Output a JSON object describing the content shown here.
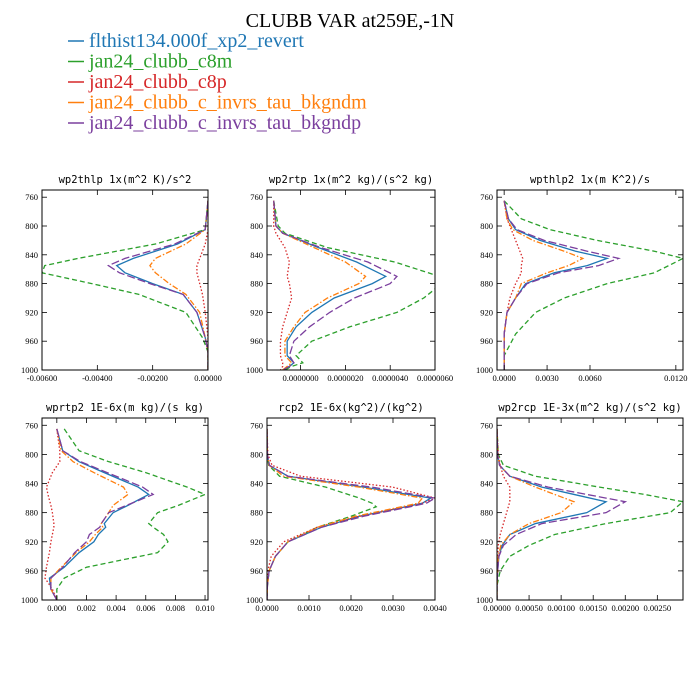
{
  "title": "CLUBB VAR at259E,-1N",
  "legend": [
    {
      "name": "flthist134.000f_xp2_revert",
      "color": "#1f77b4",
      "dash": "solid"
    },
    {
      "name": "jan24_clubb_c8m",
      "color": "#2ca02c",
      "dash": "dashed"
    },
    {
      "name": "jan24_clubb_c8p",
      "color": "#d62728",
      "dash": "dotted"
    },
    {
      "name": "jan24_clubb_c_invrs_tau_bkgndm",
      "color": "#ff7f0e",
      "dash": "dashdot"
    },
    {
      "name": "jan24_clubb_c_invrs_tau_bkgndp",
      "color": "#7b3f9e",
      "dash": "longdash"
    }
  ],
  "chart_data": [
    {
      "type": "line",
      "title": "wp2thlp  1x(m^2 K)/s^2",
      "xlim": [
        -0.006,
        0.0
      ],
      "ylim": [
        1000,
        750
      ],
      "xticks": [
        -0.006,
        -0.004,
        -0.002,
        0.0
      ],
      "xtick_labels": [
        "-0.00600",
        "-0.00400",
        "-0.00200",
        "0.00000"
      ],
      "yticks": [
        760,
        800,
        840,
        880,
        920,
        960,
        1000
      ],
      "ytick_labels": [
        "760",
        "800",
        "840",
        "880",
        "920",
        "960",
        "1000"
      ],
      "y": [
        765,
        805,
        825,
        845,
        855,
        865,
        880,
        895,
        920,
        955,
        975,
        1000
      ],
      "series": [
        {
          "values": [
            0,
            -0.0001,
            -0.0011,
            -0.0027,
            -0.0033,
            -0.003,
            -0.002,
            -0.0009,
            -0.0004,
            -0.0001,
            0,
            0
          ]
        },
        {
          "values": [
            0,
            -0.0001,
            -0.0019,
            -0.0047,
            -0.0059,
            -0.006,
            -0.0042,
            -0.0025,
            -0.0008,
            -0.0002,
            0,
            0
          ]
        },
        {
          "values": [
            0,
            0,
            -0.0001,
            -0.0003,
            -0.0004,
            -0.0004,
            -0.0003,
            -0.0002,
            -0.0001,
            0,
            0,
            0
          ]
        },
        {
          "values": [
            0,
            -0.0001,
            -0.0008,
            -0.0019,
            -0.0021,
            -0.0019,
            -0.0014,
            -0.0008,
            -0.0003,
            -0.0001,
            0,
            0
          ]
        },
        {
          "values": [
            0,
            -0.0001,
            -0.0012,
            -0.003,
            -0.0036,
            -0.0032,
            -0.0021,
            -0.0009,
            -0.0004,
            -0.0001,
            0,
            0
          ]
        }
      ]
    },
    {
      "type": "line",
      "title": "wp2rtp  1x(m^2 kg)/(s^2 kg)",
      "xlim": [
        -1.5e-06,
        6e-06
      ],
      "ylim": [
        1000,
        750
      ],
      "xticks": [
        0.0,
        2e-06,
        4e-06,
        6e-06
      ],
      "xtick_labels": [
        "0.0000000",
        "0.0000020",
        "0.0000040",
        "0.0000060"
      ],
      "yticks": [
        760,
        800,
        840,
        880,
        920,
        960,
        1000
      ],
      "ytick_labels": [
        "760",
        "800",
        "840",
        "880",
        "920",
        "960",
        "1000"
      ],
      "y": [
        765,
        800,
        810,
        830,
        850,
        870,
        880,
        900,
        920,
        940,
        960,
        980,
        990,
        995,
        1000
      ],
      "series": [
        {
          "values": [
            -1.2e-06,
            -1.1e-06,
            -8e-07,
            8e-07,
            2.5e-06,
            3.8e-06,
            3.2e-06,
            1.5e-06,
            5e-07,
            -2e-07,
            -6e-07,
            -6e-07,
            -3e-07,
            -5e-07,
            -8e-07
          ]
        },
        {
          "values": [
            -1.2e-06,
            -1e-06,
            -7e-07,
            1.2e-06,
            4.2e-06,
            6.2e-06,
            6.3e-06,
            5.5e-06,
            4.3e-06,
            2.2e-06,
            5e-07,
            -2e-07,
            1e-07,
            -4e-07,
            -7e-07
          ]
        },
        {
          "values": [
            -1.2e-06,
            -1.2e-06,
            -1.1e-06,
            -7e-07,
            -5e-07,
            -6e-07,
            -5e-07,
            -4e-07,
            -6e-07,
            -8e-07,
            -9e-07,
            -9e-07,
            -8e-07,
            -8e-07,
            -9e-07
          ]
        },
        {
          "values": [
            -1.2e-06,
            -1.1e-06,
            -8e-07,
            6e-07,
            2e-06,
            2.9e-06,
            2.6e-06,
            1.2e-06,
            2e-07,
            -3e-07,
            -7e-07,
            -7e-07,
            -4e-07,
            -6e-07,
            -8e-07
          ]
        },
        {
          "values": [
            -1.2e-06,
            -1.1e-06,
            -8e-07,
            9e-07,
            3e-06,
            4.3e-06,
            4e-06,
            2.4e-06,
            1.3e-06,
            4e-07,
            -3e-07,
            -5e-07,
            -3e-07,
            -5e-07,
            -8e-07
          ]
        }
      ]
    },
    {
      "type": "line",
      "title": "wpthlp2  1x(m K^2)/s",
      "xlim": [
        -0.0005,
        0.0125
      ],
      "ylim": [
        1000,
        750
      ],
      "xticks": [
        0.0,
        0.003,
        0.006,
        0.012
      ],
      "xtick_labels": [
        "0.0000",
        "0.0030",
        "0.0060",
        "0.0120"
      ],
      "yticks": [
        760,
        800,
        840,
        880,
        920,
        960,
        1000
      ],
      "ytick_labels": [
        "760",
        "800",
        "840",
        "880",
        "920",
        "960",
        "1000"
      ],
      "y": [
        765,
        790,
        805,
        820,
        835,
        845,
        855,
        865,
        880,
        900,
        920,
        950,
        980,
        1000
      ],
      "series": [
        {
          "values": [
            0,
            0.0003,
            0.0008,
            0.0025,
            0.005,
            0.0072,
            0.0058,
            0.0035,
            0.0015,
            0.0008,
            0.0002,
            0,
            0,
            0
          ]
        },
        {
          "values": [
            0,
            0.0012,
            0.0032,
            0.0065,
            0.0105,
            0.0125,
            0.0115,
            0.0105,
            0.0072,
            0.0042,
            0.0022,
            0.0008,
            0,
            0
          ]
        },
        {
          "values": [
            0,
            0.0002,
            0.0005,
            0.0008,
            0.0011,
            0.0013,
            0.0012,
            0.0012,
            0.0008,
            0.0004,
            0.0002,
            0,
            0,
            0
          ]
        },
        {
          "values": [
            0,
            0.0002,
            0.0006,
            0.002,
            0.0042,
            0.0055,
            0.0045,
            0.003,
            0.0012,
            0.0008,
            0.0002,
            0,
            0,
            0
          ]
        },
        {
          "values": [
            0,
            0.0003,
            0.0009,
            0.0028,
            0.0058,
            0.008,
            0.0066,
            0.0038,
            0.0016,
            0.0008,
            0.0002,
            0,
            0,
            0
          ]
        }
      ]
    },
    {
      "type": "line",
      "title": "wprtp2  1E-6x(m kg)/(s kg)",
      "xlim": [
        -0.001,
        0.0102
      ],
      "ylim": [
        1000,
        750
      ],
      "xticks": [
        0.0,
        0.002,
        0.004,
        0.006,
        0.008,
        0.01
      ],
      "xtick_labels": [
        "0.000",
        "0.002",
        "0.004",
        "0.006",
        "0.008",
        "0.010"
      ],
      "yticks": [
        760,
        800,
        840,
        880,
        920,
        960,
        1000
      ],
      "ytick_labels": [
        "760",
        "800",
        "840",
        "880",
        "920",
        "960",
        "1000"
      ],
      "y": [
        765,
        795,
        810,
        825,
        845,
        855,
        870,
        880,
        895,
        900,
        910,
        920,
        935,
        955,
        970,
        985,
        1000
      ],
      "series": [
        {
          "values": [
            0,
            0.0004,
            0.0015,
            0.0032,
            0.0055,
            0.0062,
            0.0048,
            0.0038,
            0.0032,
            0.0033,
            0.0028,
            0.0025,
            0.0015,
            0.0005,
            -0.0005,
            -0.0004,
            0
          ]
        },
        {
          "values": [
            0.0005,
            0.0015,
            0.0035,
            0.006,
            0.0088,
            0.01,
            0.0082,
            0.0068,
            0.0062,
            0.0065,
            0.0072,
            0.0075,
            0.0068,
            0.002,
            0.0005,
            0,
            0
          ]
        },
        {
          "values": [
            0,
            0.0002,
            0.0002,
            -0.0003,
            -0.0007,
            -0.0006,
            -0.0004,
            -0.0003,
            -0.0002,
            -0.0002,
            -0.0003,
            -0.0004,
            -0.0005,
            -0.0007,
            -0.0008,
            -0.0003,
            0
          ]
        },
        {
          "values": [
            0,
            0.0003,
            0.0011,
            0.0025,
            0.0045,
            0.0048,
            0.0038,
            0.0035,
            0.003,
            0.0031,
            0.0026,
            0.0022,
            0.0013,
            0.0003,
            -0.0004,
            -0.0004,
            0
          ]
        },
        {
          "values": [
            0,
            0.0004,
            0.0016,
            0.0034,
            0.0058,
            0.0065,
            0.0047,
            0.0035,
            0.003,
            0.0029,
            0.0022,
            0.002,
            0.0012,
            0.0004,
            -0.0004,
            -0.0004,
            0
          ]
        }
      ]
    },
    {
      "type": "line",
      "title": "rcp2  1E-6x(kg^2)/(kg^2)",
      "xlim": [
        0,
        0.004
      ],
      "ylim": [
        1000,
        750
      ],
      "xticks": [
        0.0,
        0.001,
        0.002,
        0.003,
        0.004
      ],
      "xtick_labels": [
        "0.0000",
        "0.0010",
        "0.0020",
        "0.0030",
        "0.0040"
      ],
      "yticks": [
        760,
        800,
        840,
        880,
        920,
        960,
        1000
      ],
      "ytick_labels": [
        "760",
        "800",
        "840",
        "880",
        "920",
        "960",
        "1000"
      ],
      "y": [
        765,
        800,
        815,
        830,
        845,
        860,
        867,
        872,
        885,
        900,
        920,
        940,
        960,
        980,
        1000
      ],
      "series": [
        {
          "values": [
            0,
            1e-05,
            5e-05,
            0.0005,
            0.0023,
            0.0039,
            0.0037,
            0.0033,
            0.0022,
            0.0013,
            0.0005,
            0.0002,
            5e-05,
            1e-05,
            0
          ]
        },
        {
          "values": [
            0,
            1e-05,
            4e-05,
            0.0003,
            0.0014,
            0.0022,
            0.0025,
            0.0026,
            0.002,
            0.0012,
            0.0005,
            0.0002,
            5e-05,
            1e-05,
            0
          ]
        },
        {
          "values": [
            0,
            2e-05,
            0.00012,
            0.0008,
            0.003,
            0.004,
            0.0037,
            0.0033,
            0.0022,
            0.0012,
            0.0004,
            0.0001,
            2e-05,
            0,
            0
          ]
        },
        {
          "values": [
            0,
            1e-05,
            5e-05,
            0.0004,
            0.0022,
            0.0037,
            0.0036,
            0.0032,
            0.0021,
            0.0012,
            0.0005,
            0.0002,
            5e-05,
            1e-05,
            0
          ]
        },
        {
          "values": [
            0,
            1e-05,
            6e-05,
            0.0005,
            0.0025,
            0.004,
            0.0038,
            0.0034,
            0.0023,
            0.0013,
            0.0005,
            0.0002,
            5e-05,
            1e-05,
            0
          ]
        }
      ]
    },
    {
      "type": "line",
      "title": "wp2rcp  1E-3x(m^2 kg)/(s^2 kg)",
      "xlim": [
        0,
        0.0029
      ],
      "ylim": [
        1000,
        750
      ],
      "xticks": [
        0.0,
        0.0005,
        0.001,
        0.0015,
        0.002,
        0.0025
      ],
      "xtick_labels": [
        "0.00000",
        "0.00050",
        "0.00100",
        "0.00150",
        "0.00200",
        "0.00250"
      ],
      "yticks": [
        760,
        800,
        840,
        880,
        920,
        960,
        1000
      ],
      "ytick_labels": [
        "760",
        "800",
        "840",
        "880",
        "920",
        "960",
        "1000"
      ],
      "y": [
        765,
        800,
        815,
        830,
        845,
        855,
        865,
        880,
        895,
        910,
        925,
        940,
        960,
        980,
        1000
      ],
      "series": [
        {
          "values": [
            0,
            1e-05,
            4e-05,
            0.0002,
            0.0007,
            0.0012,
            0.0017,
            0.0014,
            0.0006,
            0.0002,
            8e-05,
            3e-05,
            1e-05,
            0,
            0
          ]
        },
        {
          "values": [
            0,
            2e-05,
            0.0001,
            0.0006,
            0.0016,
            0.0023,
            0.0029,
            0.0027,
            0.0017,
            0.0009,
            0.0005,
            0.0002,
            5e-05,
            0,
            0
          ]
        },
        {
          "values": [
            0,
            2e-05,
            5e-05,
            0.0001,
            0.0002,
            0.0002,
            0.0002,
            0.00015,
            0.0001,
            5e-05,
            2e-05,
            1e-05,
            0,
            0,
            0
          ]
        },
        {
          "values": [
            0,
            1e-05,
            4e-05,
            0.0002,
            0.0006,
            0.0009,
            0.0012,
            0.001,
            0.0005,
            0.0002,
            6e-05,
            2e-05,
            1e-05,
            0,
            0
          ]
        },
        {
          "values": [
            0,
            1e-05,
            4e-05,
            0.0002,
            0.0008,
            0.0014,
            0.002,
            0.0017,
            0.0007,
            0.0003,
            0.0001,
            3e-05,
            1e-05,
            0,
            0
          ]
        }
      ]
    }
  ]
}
